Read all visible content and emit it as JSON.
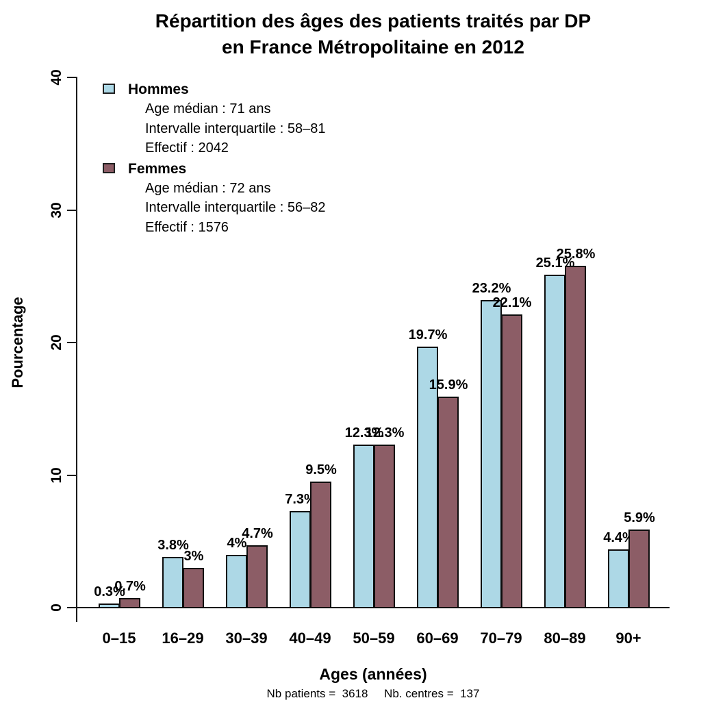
{
  "title": {
    "line1": "Répartition des âges des patients traités par DP",
    "line2": "en France Métropolitaine en 2012"
  },
  "y_axis": {
    "label": "Pourcentage",
    "ticks": [
      0,
      10,
      20,
      30,
      40
    ]
  },
  "x_axis": {
    "label": "Ages (années)"
  },
  "footer": "Nb patients =  3618     Nb. centres =  137",
  "legend": [
    {
      "name": "Hommes",
      "color": "#ADD8E6",
      "lines": [
        "Age médian : 71 ans",
        "Intervalle interquartile : 58–81",
        "Effectif :  2042"
      ]
    },
    {
      "name": "Femmes",
      "color": "#8C5D66",
      "lines": [
        "Age médian : 72 ans",
        "Intervalle interquartile : 56–82",
        "Effectif :  1576"
      ]
    }
  ],
  "chart_data": {
    "type": "bar",
    "title": "Répartition des âges des patients traités par DP en France Métropolitaine en 2012",
    "xlabel": "Ages (années)",
    "ylabel": "Pourcentage",
    "ylim": [
      0,
      40
    ],
    "grid": false,
    "legend_position": "top-left",
    "categories": [
      "0–15",
      "16–29",
      "30–39",
      "40–49",
      "50–59",
      "60–69",
      "70–79",
      "80–89",
      "90+"
    ],
    "series": [
      {
        "name": "Hommes",
        "color": "#ADD8E6",
        "values": [
          0.3,
          3.8,
          4,
          7.3,
          12.3,
          19.7,
          23.2,
          25.1,
          4.4
        ],
        "labels": [
          "0.3%",
          "3.8%",
          "4%",
          "7.3%",
          "12.3%",
          "19.7%",
          "23.2%",
          "25.1%",
          "4.4%"
        ]
      },
      {
        "name": "Femmes",
        "color": "#8C5D66",
        "values": [
          0.7,
          3,
          4.7,
          9.5,
          12.3,
          15.9,
          22.1,
          25.8,
          5.9
        ],
        "labels": [
          "0.7%",
          "3%",
          "4.7%",
          "9.5%",
          "12.3%",
          "15.9%",
          "22.1%",
          "25.8%",
          "5.9%"
        ]
      }
    ]
  }
}
